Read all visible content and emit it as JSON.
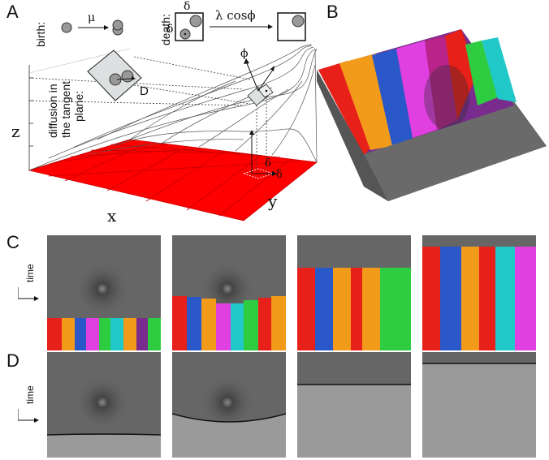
{
  "panels": {
    "A": "A",
    "B": "B",
    "C": "C",
    "D": "D"
  },
  "schematic": {
    "birth_label": "birth:",
    "mu": "μ",
    "death_label": "death:",
    "delta": "δ",
    "death_rate": "λ cosϕ",
    "diffusion_label_line1": "diffusion in",
    "diffusion_label_line2": "the tangent",
    "diffusion_label_line3": "plane:",
    "D": "D",
    "phi": "ϕ",
    "z": "z",
    "x": "x",
    "y": "y"
  },
  "time_label": "time",
  "colors": {
    "plane": "#ff0000",
    "tile_bg": "#666666",
    "bg_D": "#9a9a9a"
  }
}
